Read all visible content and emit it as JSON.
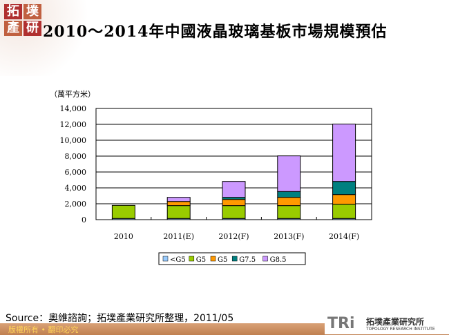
{
  "header": {
    "logo_text": [
      "拓",
      "墣",
      "產",
      "研"
    ],
    "title": "2010～2014年中國液晶玻璃基板市場規模預估"
  },
  "chart_data": {
    "type": "bar",
    "stacked": true,
    "title": "",
    "ylabel": "（萬平方米）",
    "xlabel": "",
    "categories": [
      "2010",
      "2011(E)",
      "2012(F)",
      "2013(F)",
      "2014(F)"
    ],
    "ylim": [
      0,
      14000
    ],
    "yticks": [
      "0",
      "2,000",
      "4,000",
      "6,000",
      "8,000",
      "10,000",
      "12,000",
      "14,000"
    ],
    "grid": true,
    "legend_position": "bottom",
    "series": [
      {
        "name": "<G5",
        "color": "#99ccff",
        "values": [
          150,
          150,
          150,
          150,
          150
        ]
      },
      {
        "name": "G5",
        "color": "#99cc00",
        "values": [
          1650,
          1620,
          1620,
          1620,
          1790
        ]
      },
      {
        "name": "G5",
        "color": "#ff9900",
        "values": [
          0,
          520,
          780,
          1040,
          1220
        ]
      },
      {
        "name": "G7.5",
        "color": "#008080",
        "values": [
          0,
          0,
          260,
          730,
          1650
        ]
      },
      {
        "name": "G8.5",
        "color": "#cc99ff",
        "values": [
          0,
          520,
          2000,
          4490,
          7220
        ]
      }
    ]
  },
  "footer": {
    "source": "Source：奧維諮詢；拓墣產業研究所整理，2011/05",
    "copyright": "版權所有 • 翻印必究",
    "brand": "TRi",
    "brand_cn": "拓墣產業研究所",
    "brand_en": "TOPOLOGY RESEARCH INSTITUTE"
  }
}
